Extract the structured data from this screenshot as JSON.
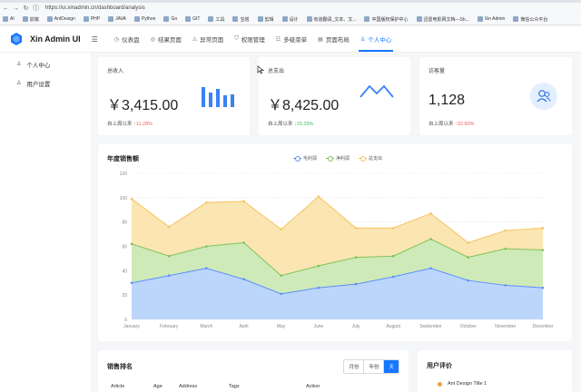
{
  "browser": {
    "url": "https://ui.xinadmin.cn/dashboard/analysis",
    "bookmarks": [
      "AI",
      "前端",
      "AntDesign",
      "PHP",
      "JAVA",
      "Python",
      "Go",
      "GIT",
      "工具",
      "宝塔",
      "剪辑",
      "设计",
      "有道翻译_文本、文...",
      "中国版权保护中心",
      "迅雷电影网文档—Sh...",
      "Xin Admin",
      "微信公众平台"
    ]
  },
  "app": {
    "title": "Xin Admin UI"
  },
  "topnav": [
    {
      "label": "仪表盘",
      "icon": "dashboard-icon"
    },
    {
      "label": "结果页面",
      "icon": "result-icon"
    },
    {
      "label": "异常页面",
      "icon": "warning-icon"
    },
    {
      "label": "权限管理",
      "icon": "permission-icon"
    },
    {
      "label": "多级菜单",
      "icon": "menu-icon"
    },
    {
      "label": "页面布局",
      "icon": "layout-icon"
    },
    {
      "label": "个人中心",
      "icon": "user-icon",
      "active": true
    }
  ],
  "sidebar": {
    "items": [
      {
        "label": "个人中心",
        "icon": "user-icon"
      },
      {
        "label": "用户设置",
        "icon": "user-settings-icon"
      }
    ]
  },
  "stats": {
    "income": {
      "label": "总收入",
      "value": "￥3,415.00",
      "since": "自上周以来",
      "change": "11.28%",
      "trend": "up"
    },
    "expense": {
      "label": "总支出",
      "value": "￥8,425.00",
      "since": "自上周以来",
      "change": "15.33%",
      "trend": "down"
    },
    "visitors": {
      "label": "访客量",
      "value": "1,128",
      "since": "自上周以来",
      "change": "32.60%",
      "trend": "up"
    }
  },
  "colors": {
    "accent": "#1677ff",
    "up": "#ef5f5f",
    "down": "#48b85c",
    "s1": "#5b8ff9",
    "s2": "#7fc35a",
    "s3": "#f6c45a"
  },
  "chart_data": {
    "type": "area",
    "title": "年度销售额",
    "x": [
      "January",
      "February",
      "March",
      "April",
      "May",
      "June",
      "July",
      "August",
      "September",
      "October",
      "November",
      "December"
    ],
    "series": [
      {
        "name": "毛利润",
        "values": [
          30,
          36,
          42,
          33,
          21,
          26,
          29,
          35,
          42,
          32,
          28,
          26
        ]
      },
      {
        "name": "净利润",
        "values": [
          32,
          16,
          18,
          30,
          15,
          18,
          22,
          17,
          24,
          19,
          30,
          31
        ]
      },
      {
        "name": "总支出",
        "values": [
          37,
          24,
          36,
          34,
          38,
          57,
          24,
          23,
          21,
          12,
          15,
          18
        ]
      }
    ],
    "stacked": true,
    "ylim": [
      0,
      120
    ],
    "yticks": [
      0,
      20,
      40,
      60,
      80,
      100,
      120
    ],
    "legend": "top-center",
    "grid": true
  },
  "sales": {
    "title": "销售排名",
    "tabs": [
      "月份",
      "年份",
      "天"
    ],
    "active_tab": "天",
    "columns": [
      "Article",
      "Age",
      "Address",
      "Tags",
      "Action"
    ]
  },
  "reviews": {
    "title": "用户评价",
    "items": [
      "Ant Design Title 1"
    ]
  }
}
